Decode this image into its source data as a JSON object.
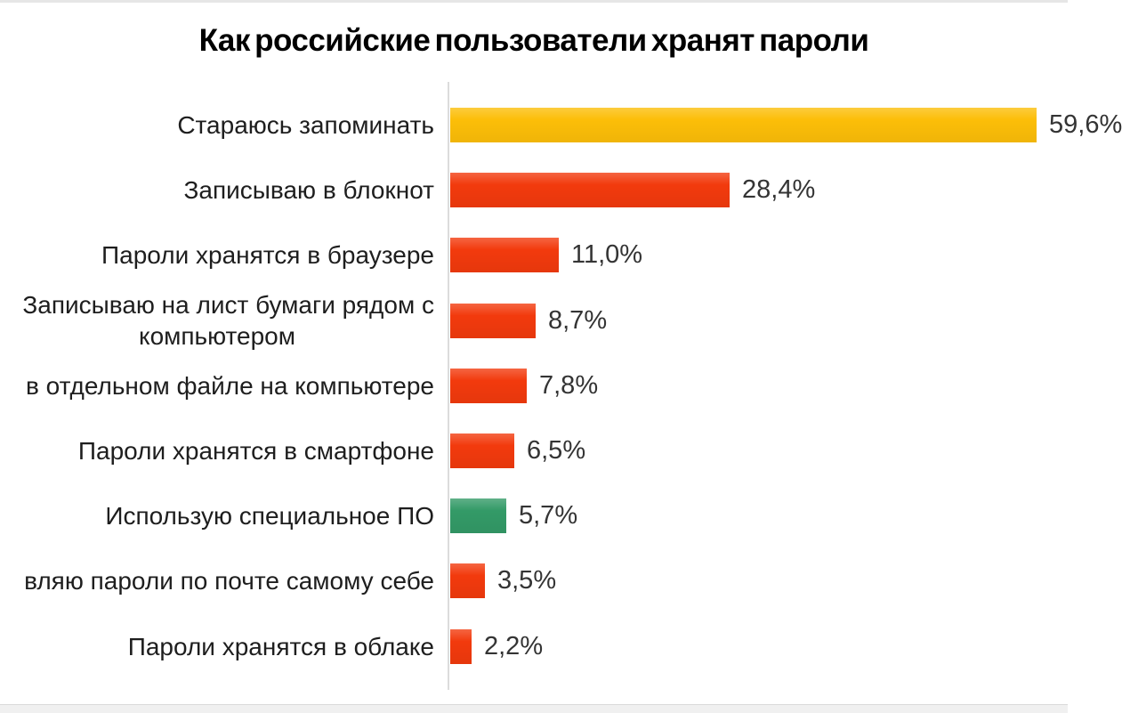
{
  "title": "Как российские пользователи хранят пароли",
  "colors": {
    "yellow_bar": "#FCBE08",
    "red_bar": "#F23A0D",
    "green_bar": "#339A67",
    "axis": "#DCDCDC",
    "value_text": "#343434",
    "label_text": "#1E1E1E"
  },
  "chart_data": {
    "type": "bar",
    "orientation": "horizontal",
    "title": "Как российские пользователи хранят пароли",
    "xlabel": "",
    "ylabel": "",
    "unit": "%",
    "decimal_separator": ",",
    "xlim": [
      0,
      62
    ],
    "grid": false,
    "legend": false,
    "categories": [
      "Стараюсь запоминать",
      "Записываю в блокнот",
      "Пароли хранятся в браузере",
      "Записываю на лист бумаги рядом с компьютером",
      "в отдельном файле на компьютере",
      "Пароли хранятся в смартфоне",
      "Использую специальное ПО",
      "вляю пароли по почте самому себе",
      "Пароли хранятся в облаке"
    ],
    "label_lines": [
      [
        "Стараюсь запоминать"
      ],
      [
        "Записываю в блокнот"
      ],
      [
        "Пароли хранятся в браузере"
      ],
      [
        "Записываю на лист бумаги рядом с",
        "компьютером"
      ],
      [
        "в отдельном файле на компьютере"
      ],
      [
        "Пароли хранятся в смартфоне"
      ],
      [
        "Использую специальное ПО"
      ],
      [
        "вляю пароли по почте самому себе"
      ],
      [
        "Пароли хранятся в облаке"
      ]
    ],
    "values": [
      59.6,
      28.4,
      11.0,
      8.7,
      7.8,
      6.5,
      5.7,
      3.5,
      2.2
    ],
    "value_labels": [
      "59,6%",
      "28,4%",
      "11,0%",
      "8,7%",
      "7,8%",
      "6,5%",
      "5,7%",
      "3,5%",
      "2,2%"
    ],
    "bar_colors": [
      "#FCBE08",
      "#F23A0D",
      "#F23A0D",
      "#F23A0D",
      "#F23A0D",
      "#F23A0D",
      "#339A67",
      "#F23A0D",
      "#F23A0D"
    ]
  }
}
